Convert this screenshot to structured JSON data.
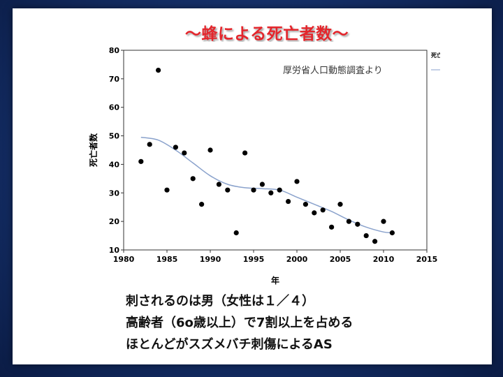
{
  "slide": {
    "title": "～蜂による死亡者数～",
    "notes": [
      "刺されるのは男（女性は１／４）",
      "高齢者（6o歳以上）で7割以上を占める",
      "ほとんどがスズメバチ刺傷によるAS"
    ]
  },
  "chart_data": {
    "type": "scatter",
    "title": "",
    "xlabel": "年",
    "ylabel": "死亡者数",
    "annotation": "厚労省人口動態調査より",
    "legend_fragment": "死亡",
    "xlim": [
      1980,
      2015
    ],
    "ylim": [
      10,
      80
    ],
    "xticks": [
      1980,
      1985,
      1990,
      1995,
      2000,
      2005,
      2010,
      2015
    ],
    "yticks": [
      10,
      20,
      30,
      40,
      50,
      60,
      70,
      80
    ],
    "grid": false,
    "legend": "top-right (clipped)",
    "colors": {
      "points": "#000000",
      "trend": "#8aa2cc",
      "title": "#e4262c"
    },
    "series": [
      {
        "x": [
          1982,
          1983,
          1984,
          1985,
          1986,
          1987,
          1988,
          1989,
          1990,
          1991,
          1992,
          1993,
          1994,
          1995,
          1996,
          1997,
          1998,
          1999,
          2000,
          2001,
          2002,
          2003,
          2004,
          2005,
          2006,
          2007,
          2008,
          2009,
          2010,
          2011
        ],
        "y": [
          41,
          47,
          73,
          31,
          46,
          44,
          35,
          26,
          45,
          33,
          31,
          16,
          44,
          31,
          33,
          30,
          31,
          27,
          34,
          26,
          23,
          24,
          18,
          26,
          20,
          19,
          15,
          13,
          20,
          16
        ]
      }
    ],
    "trend": {
      "x": [
        1982,
        1984,
        1986,
        1988,
        1990,
        1992,
        1994,
        1996,
        1998,
        2000,
        2002,
        2004,
        2006,
        2008,
        2010,
        2011
      ],
      "y": [
        49.5,
        48.5,
        45,
        40.5,
        36,
        33,
        31.8,
        31.5,
        31,
        28.5,
        26,
        23.5,
        20.5,
        18,
        16.3,
        16
      ]
    }
  }
}
